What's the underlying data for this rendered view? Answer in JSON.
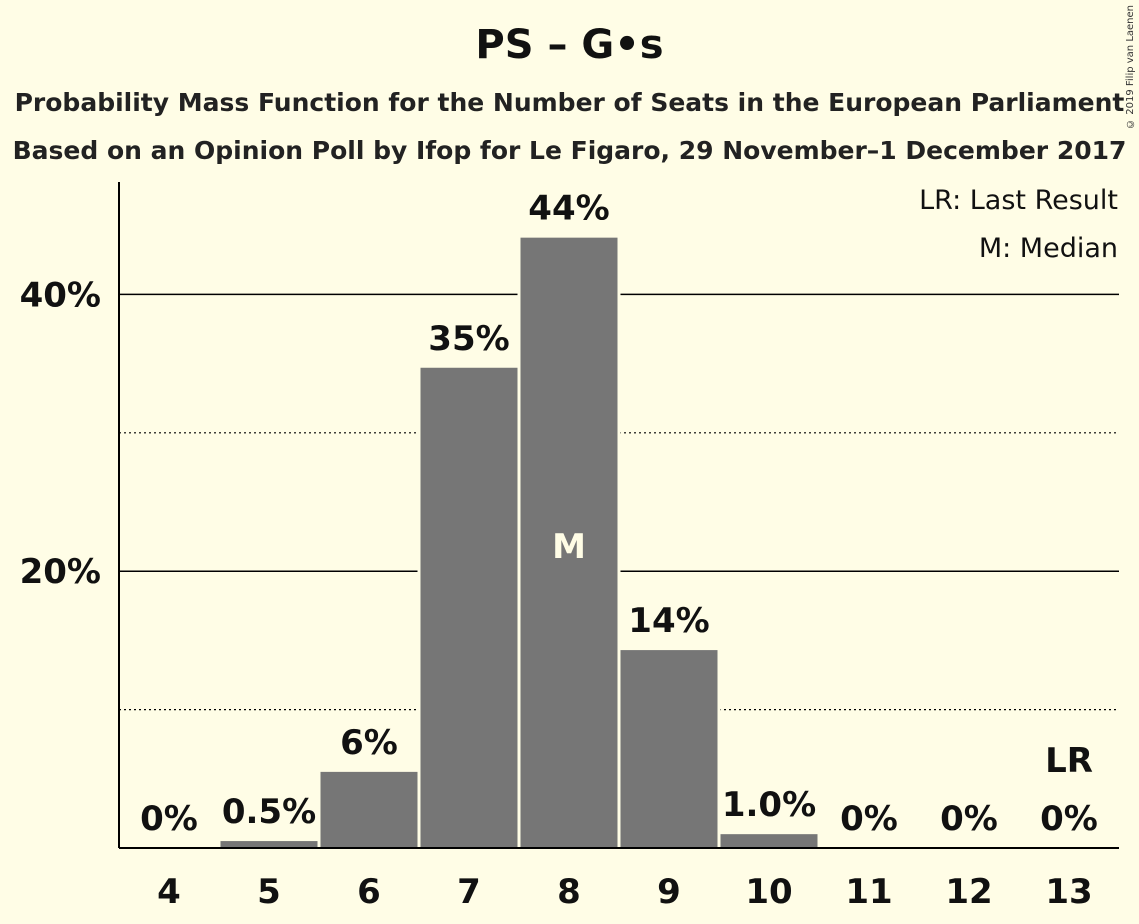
{
  "title": "PS – G•s",
  "subtitle1": "Probability Mass Function for the Number of Seats in the European Parliament",
  "subtitle2": "Based on an Opinion Poll by Ifop for Le Figaro, 29 November–1 December 2017",
  "copyright": "© 2019 Filip van Laenen",
  "colors": {
    "background": "#FFFDE6",
    "bar": "#767676",
    "text": "#111111"
  },
  "chart_data": {
    "type": "bar",
    "categories": [
      "4",
      "5",
      "6",
      "7",
      "8",
      "9",
      "10",
      "11",
      "12",
      "13"
    ],
    "values": [
      0,
      0.5,
      5.5,
      34.7,
      44.1,
      14.3,
      1.0,
      0,
      0,
      0
    ],
    "value_labels": [
      "0%",
      "0.5%",
      "6%",
      "35%",
      "44%",
      "14%",
      "1.0%",
      "0%",
      "0%",
      "0%"
    ],
    "ylim": [
      0,
      48
    ],
    "y_ticks": [
      {
        "value": 20,
        "label": "20%"
      },
      {
        "value": 40,
        "label": "40%"
      }
    ],
    "y_minor_gridlines": [
      10,
      30
    ],
    "median_category": "8",
    "median_marker": "M",
    "last_result_category": "13",
    "last_result_marker": "LR",
    "legend": [
      "LR: Last Result",
      "M: Median"
    ],
    "legend_position": "top-right"
  }
}
